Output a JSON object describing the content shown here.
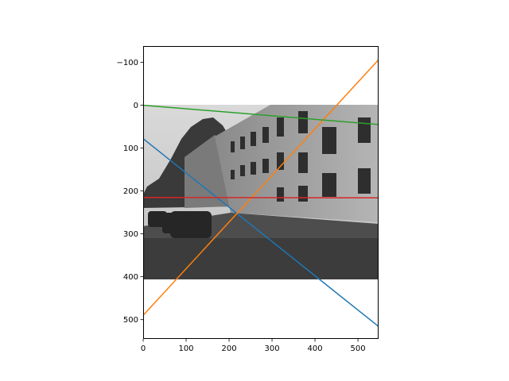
{
  "chart_data": {
    "type": "line",
    "title": "",
    "xlabel": "",
    "ylabel": "",
    "xlim": [
      0,
      548
    ],
    "ylim": [
      545,
      -138
    ],
    "y_inverted": true,
    "grid": false,
    "legend": "none",
    "x_ticks": [
      0,
      100,
      200,
      300,
      400,
      500
    ],
    "x_tick_labels": [
      "0",
      "100",
      "200",
      "300",
      "400",
      "500"
    ],
    "y_ticks": [
      -100,
      0,
      100,
      200,
      300,
      400,
      500
    ],
    "y_tick_labels": [
      "−100",
      "0",
      "100",
      "200",
      "300",
      "400",
      "500"
    ],
    "background_image": {
      "description": "grayscale street photo",
      "extent_x": [
        0,
        548
      ],
      "extent_y": [
        0,
        405
      ]
    },
    "series": [
      {
        "color": "#1f77b4",
        "x": [
          0,
          548
        ],
        "y": [
          78,
          516
        ]
      },
      {
        "color": "#ff7f0e",
        "x": [
          0,
          548
        ],
        "y": [
          490,
          -106
        ]
      },
      {
        "color": "#2ca02c",
        "x": [
          0,
          548
        ],
        "y": [
          0,
          45
        ]
      },
      {
        "color": "#d62728",
        "x": [
          0,
          548
        ],
        "y": [
          215,
          216
        ]
      }
    ]
  }
}
